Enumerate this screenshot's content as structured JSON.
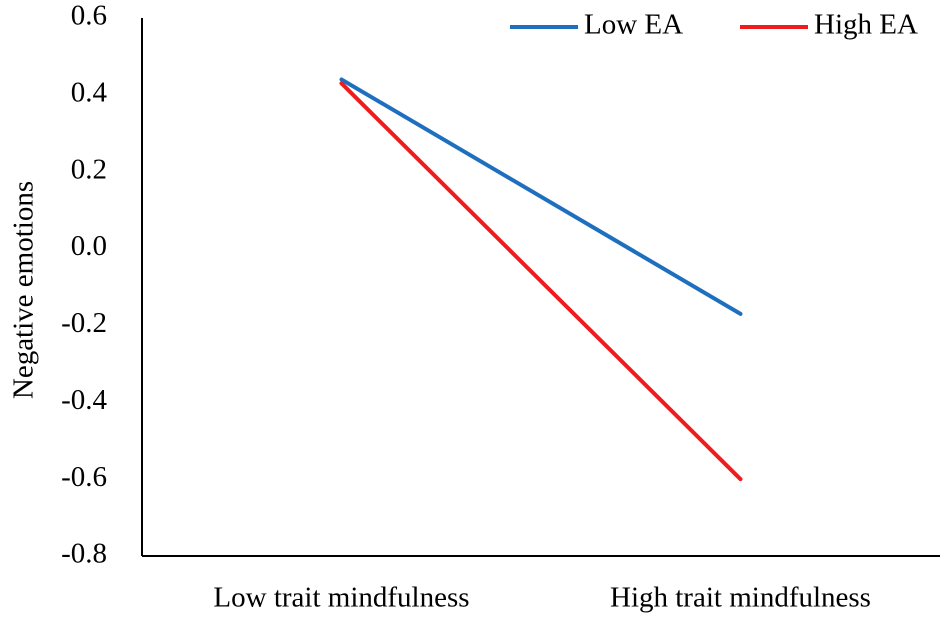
{
  "chart_data": {
    "type": "line",
    "title": "",
    "xlabel": "",
    "ylabel": "Negative emotions",
    "categories": [
      "Low trait mindfulness",
      "High trait mindfulness"
    ],
    "ylim": [
      -0.8,
      0.6
    ],
    "yticks": [
      "0.6",
      "0.4",
      "0.2",
      "0.0",
      "-0.2",
      "-0.4",
      "-0.6",
      "-0.8"
    ],
    "ytick_values": [
      0.6,
      0.4,
      0.2,
      0.0,
      -0.2,
      -0.4,
      -0.6,
      -0.8
    ],
    "grid": false,
    "legend_position": "top-right",
    "series": [
      {
        "name": "Low EA",
        "color": "#1f6fbf",
        "values": [
          0.44,
          -0.17
        ]
      },
      {
        "name": "High EA",
        "color": "#ee1c1c",
        "values": [
          0.43,
          -0.6
        ]
      }
    ]
  }
}
